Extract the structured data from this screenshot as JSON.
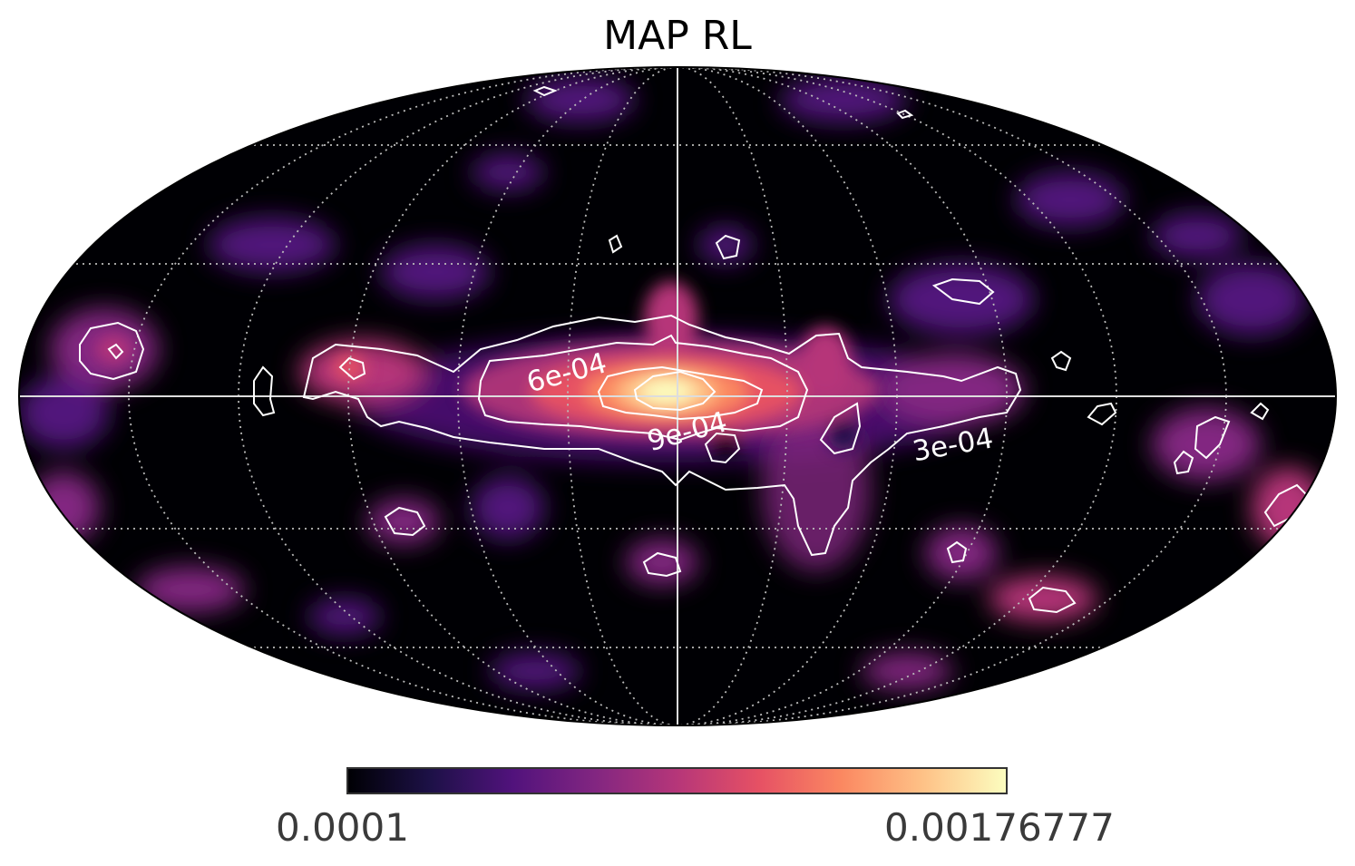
{
  "title": "MAP RL",
  "projection": "mollweide",
  "colormap": "magma",
  "colormap_stops": [
    "#000004",
    "#1d1147",
    "#51127c",
    "#822681",
    "#b63679",
    "#e65164",
    "#fb8861",
    "#fec287",
    "#fcfdbf"
  ],
  "colorbar": {
    "min_label": "0.0001",
    "max_label": "0.00176777"
  },
  "contours": {
    "color": "#ffffff",
    "labels": [
      "6e-04",
      "9e-04",
      "3e-04"
    ]
  },
  "graticule": {
    "style": "dotted",
    "color": "#bbbbbb",
    "parallel_step_deg": 30,
    "meridian_step_deg": 30
  },
  "background_color": "#000004"
}
